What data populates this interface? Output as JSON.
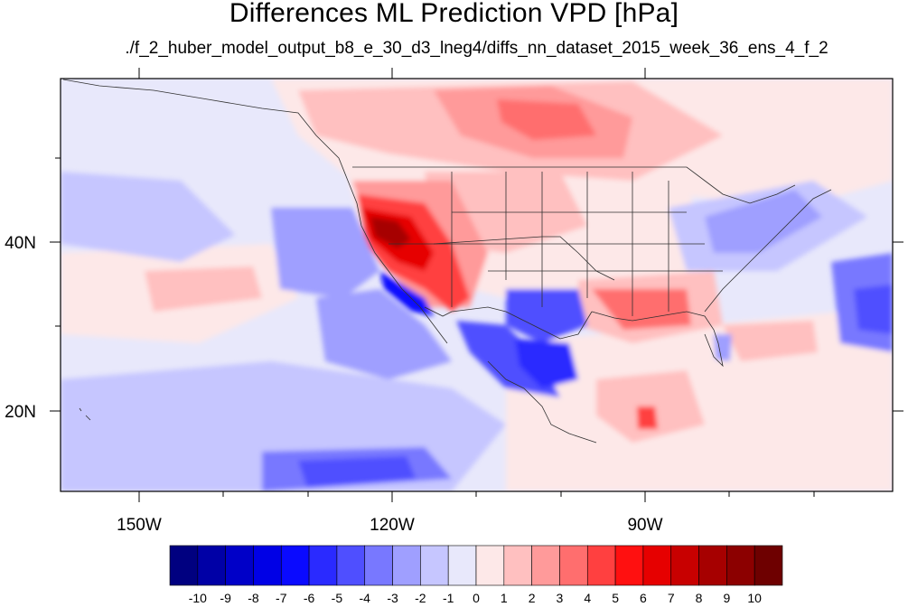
{
  "title": "Differences ML Prediction VPD [hPa]",
  "subtitle": "./f_2_huber_model_output_b8_e_30_d3_lneg4/diffs_nn_dataset_2015_week_36_ens_4_f_2",
  "map": {
    "lon_ticks": [
      "150W",
      "120W",
      "90W"
    ],
    "lat_ticks": [
      "40N",
      "20N"
    ]
  },
  "colorbar": {
    "labels": [
      "-10",
      "-9",
      "-8",
      "-7",
      "-6",
      "-5",
      "-4",
      "-3",
      "-2",
      "-1",
      "0",
      "1",
      "2",
      "3",
      "4",
      "5",
      "6",
      "7",
      "8",
      "9",
      "10"
    ],
    "colors": [
      "#000080",
      "#0000a6",
      "#0000c8",
      "#0000e6",
      "#0a0aff",
      "#2a2aff",
      "#4f4fff",
      "#7878ff",
      "#9f9fff",
      "#c6c6ff",
      "#e8e8fb",
      "#fde8e8",
      "#ffc0c0",
      "#ff9a9a",
      "#ff6e6e",
      "#ff4040",
      "#ff1010",
      "#e60000",
      "#c80000",
      "#a60000",
      "#8c0000",
      "#6e0000"
    ]
  }
}
